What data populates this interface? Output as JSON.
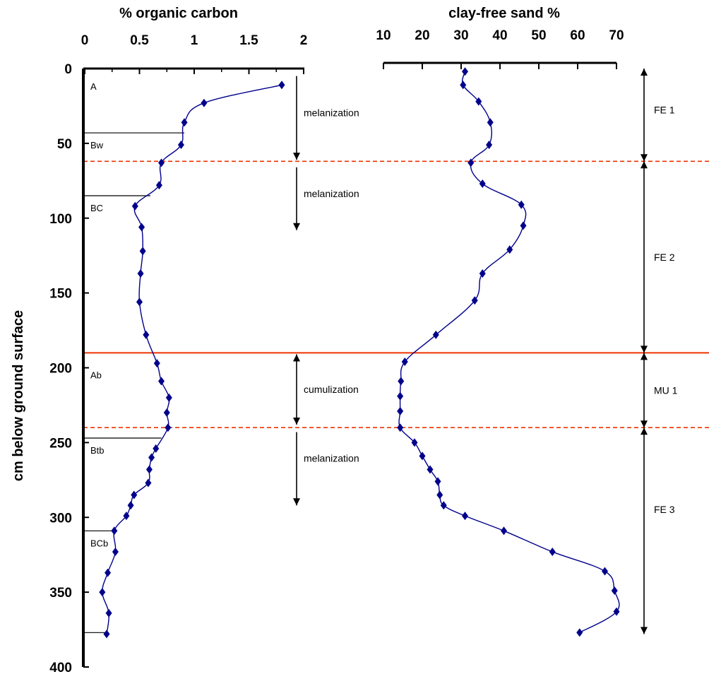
{
  "chart_data": [
    {
      "type": "line",
      "title": "% organic carbon",
      "ylabel": "cm below ground surface",
      "xlim": [
        0,
        2
      ],
      "ylim": [
        400,
        0
      ],
      "x_ticks": [
        "0",
        "0.5",
        "1",
        "1.5",
        "2"
      ],
      "y_ticks": [
        "0",
        "50",
        "100",
        "150",
        "200",
        "250",
        "300",
        "350",
        "400"
      ],
      "grid": false,
      "series": [
        {
          "color": "#00008b",
          "points": [
            {
              "x": 1.8,
              "y": 11
            },
            {
              "x": 1.09,
              "y": 23
            },
            {
              "x": 0.91,
              "y": 36
            },
            {
              "x": 0.88,
              "y": 51
            },
            {
              "x": 0.7,
              "y": 63
            },
            {
              "x": 0.68,
              "y": 78
            },
            {
              "x": 0.46,
              "y": 92
            },
            {
              "x": 0.52,
              "y": 106
            },
            {
              "x": 0.53,
              "y": 122
            },
            {
              "x": 0.51,
              "y": 137
            },
            {
              "x": 0.5,
              "y": 156
            },
            {
              "x": 0.56,
              "y": 178
            },
            {
              "x": 0.66,
              "y": 197
            },
            {
              "x": 0.7,
              "y": 209
            },
            {
              "x": 0.77,
              "y": 220
            },
            {
              "x": 0.75,
              "y": 230
            },
            {
              "x": 0.76,
              "y": 240
            },
            {
              "x": 0.65,
              "y": 254
            },
            {
              "x": 0.61,
              "y": 260
            },
            {
              "x": 0.59,
              "y": 268
            },
            {
              "x": 0.58,
              "y": 277
            },
            {
              "x": 0.45,
              "y": 285
            },
            {
              "x": 0.42,
              "y": 292
            },
            {
              "x": 0.38,
              "y": 299
            },
            {
              "x": 0.27,
              "y": 309
            },
            {
              "x": 0.28,
              "y": 323
            },
            {
              "x": 0.21,
              "y": 337
            },
            {
              "x": 0.16,
              "y": 350
            },
            {
              "x": 0.22,
              "y": 364
            },
            {
              "x": 0.2,
              "y": 378
            }
          ]
        }
      ],
      "horizons": [
        {
          "label": "A",
          "depth": 8,
          "x_end": null
        },
        {
          "label": "Bw",
          "depth": 43,
          "x_end": 0.91
        },
        {
          "label": "BC",
          "depth": 85,
          "x_end": 0.6
        },
        {
          "label": "Ab",
          "depth": 201,
          "x_end": null
        },
        {
          "label": "Btb",
          "depth": 247,
          "x_end": 0.7
        },
        {
          "label": "BCb",
          "depth": 309,
          "x_end": 0.25
        },
        {
          "label": "",
          "depth": 377,
          "x_end": 0.22
        }
      ],
      "processes": [
        {
          "label": "melanization",
          "from": 5,
          "to": 61
        },
        {
          "label": "melanization",
          "from": 66,
          "to": 108
        },
        {
          "label": "cumulization",
          "from": 191,
          "to": 238
        },
        {
          "label": "melanization",
          "from": 243,
          "to": 292
        }
      ]
    },
    {
      "type": "line",
      "title": "clay-free sand %",
      "xlim": [
        10,
        70
      ],
      "ylim": [
        400,
        0
      ],
      "x_ticks": [
        "10",
        "20",
        "30",
        "40",
        "50",
        "60",
        "70"
      ],
      "grid": false,
      "series": [
        {
          "color": "#00008b",
          "points": [
            {
              "x": 31,
              "y": 2
            },
            {
              "x": 30.5,
              "y": 11
            },
            {
              "x": 34.5,
              "y": 22
            },
            {
              "x": 37.5,
              "y": 36
            },
            {
              "x": 37.2,
              "y": 51
            },
            {
              "x": 32.5,
              "y": 63
            },
            {
              "x": 35.5,
              "y": 77
            },
            {
              "x": 45.5,
              "y": 91
            },
            {
              "x": 46,
              "y": 105
            },
            {
              "x": 42.5,
              "y": 121
            },
            {
              "x": 35.5,
              "y": 137
            },
            {
              "x": 33.5,
              "y": 155
            },
            {
              "x": 23.5,
              "y": 178
            },
            {
              "x": 15.5,
              "y": 196
            },
            {
              "x": 14.5,
              "y": 209
            },
            {
              "x": 14.3,
              "y": 219
            },
            {
              "x": 14.3,
              "y": 229
            },
            {
              "x": 14.3,
              "y": 240
            },
            {
              "x": 18,
              "y": 250
            },
            {
              "x": 20,
              "y": 259
            },
            {
              "x": 22,
              "y": 268
            },
            {
              "x": 24,
              "y": 276
            },
            {
              "x": 24.5,
              "y": 285
            },
            {
              "x": 25.5,
              "y": 292
            },
            {
              "x": 31,
              "y": 299
            },
            {
              "x": 41,
              "y": 309
            },
            {
              "x": 53.5,
              "y": 323
            },
            {
              "x": 67,
              "y": 336
            },
            {
              "x": 69.5,
              "y": 349
            },
            {
              "x": 70,
              "y": 363
            },
            {
              "x": 60.5,
              "y": 377
            }
          ]
        }
      ]
    }
  ],
  "boundaries": [
    {
      "depth": 62,
      "style": "dashed",
      "color": "#ee3300"
    },
    {
      "depth": 190,
      "style": "solid",
      "color": "#ee3300"
    },
    {
      "depth": 240,
      "style": "dashed",
      "color": "#ee3300"
    }
  ],
  "units": [
    {
      "label": "FE 1",
      "from": 0,
      "to": 62
    },
    {
      "label": "FE 2",
      "from": 62,
      "to": 190
    },
    {
      "label": "MU 1",
      "from": 190,
      "to": 240
    },
    {
      "label": "FE 3",
      "from": 240,
      "to": 378
    }
  ]
}
